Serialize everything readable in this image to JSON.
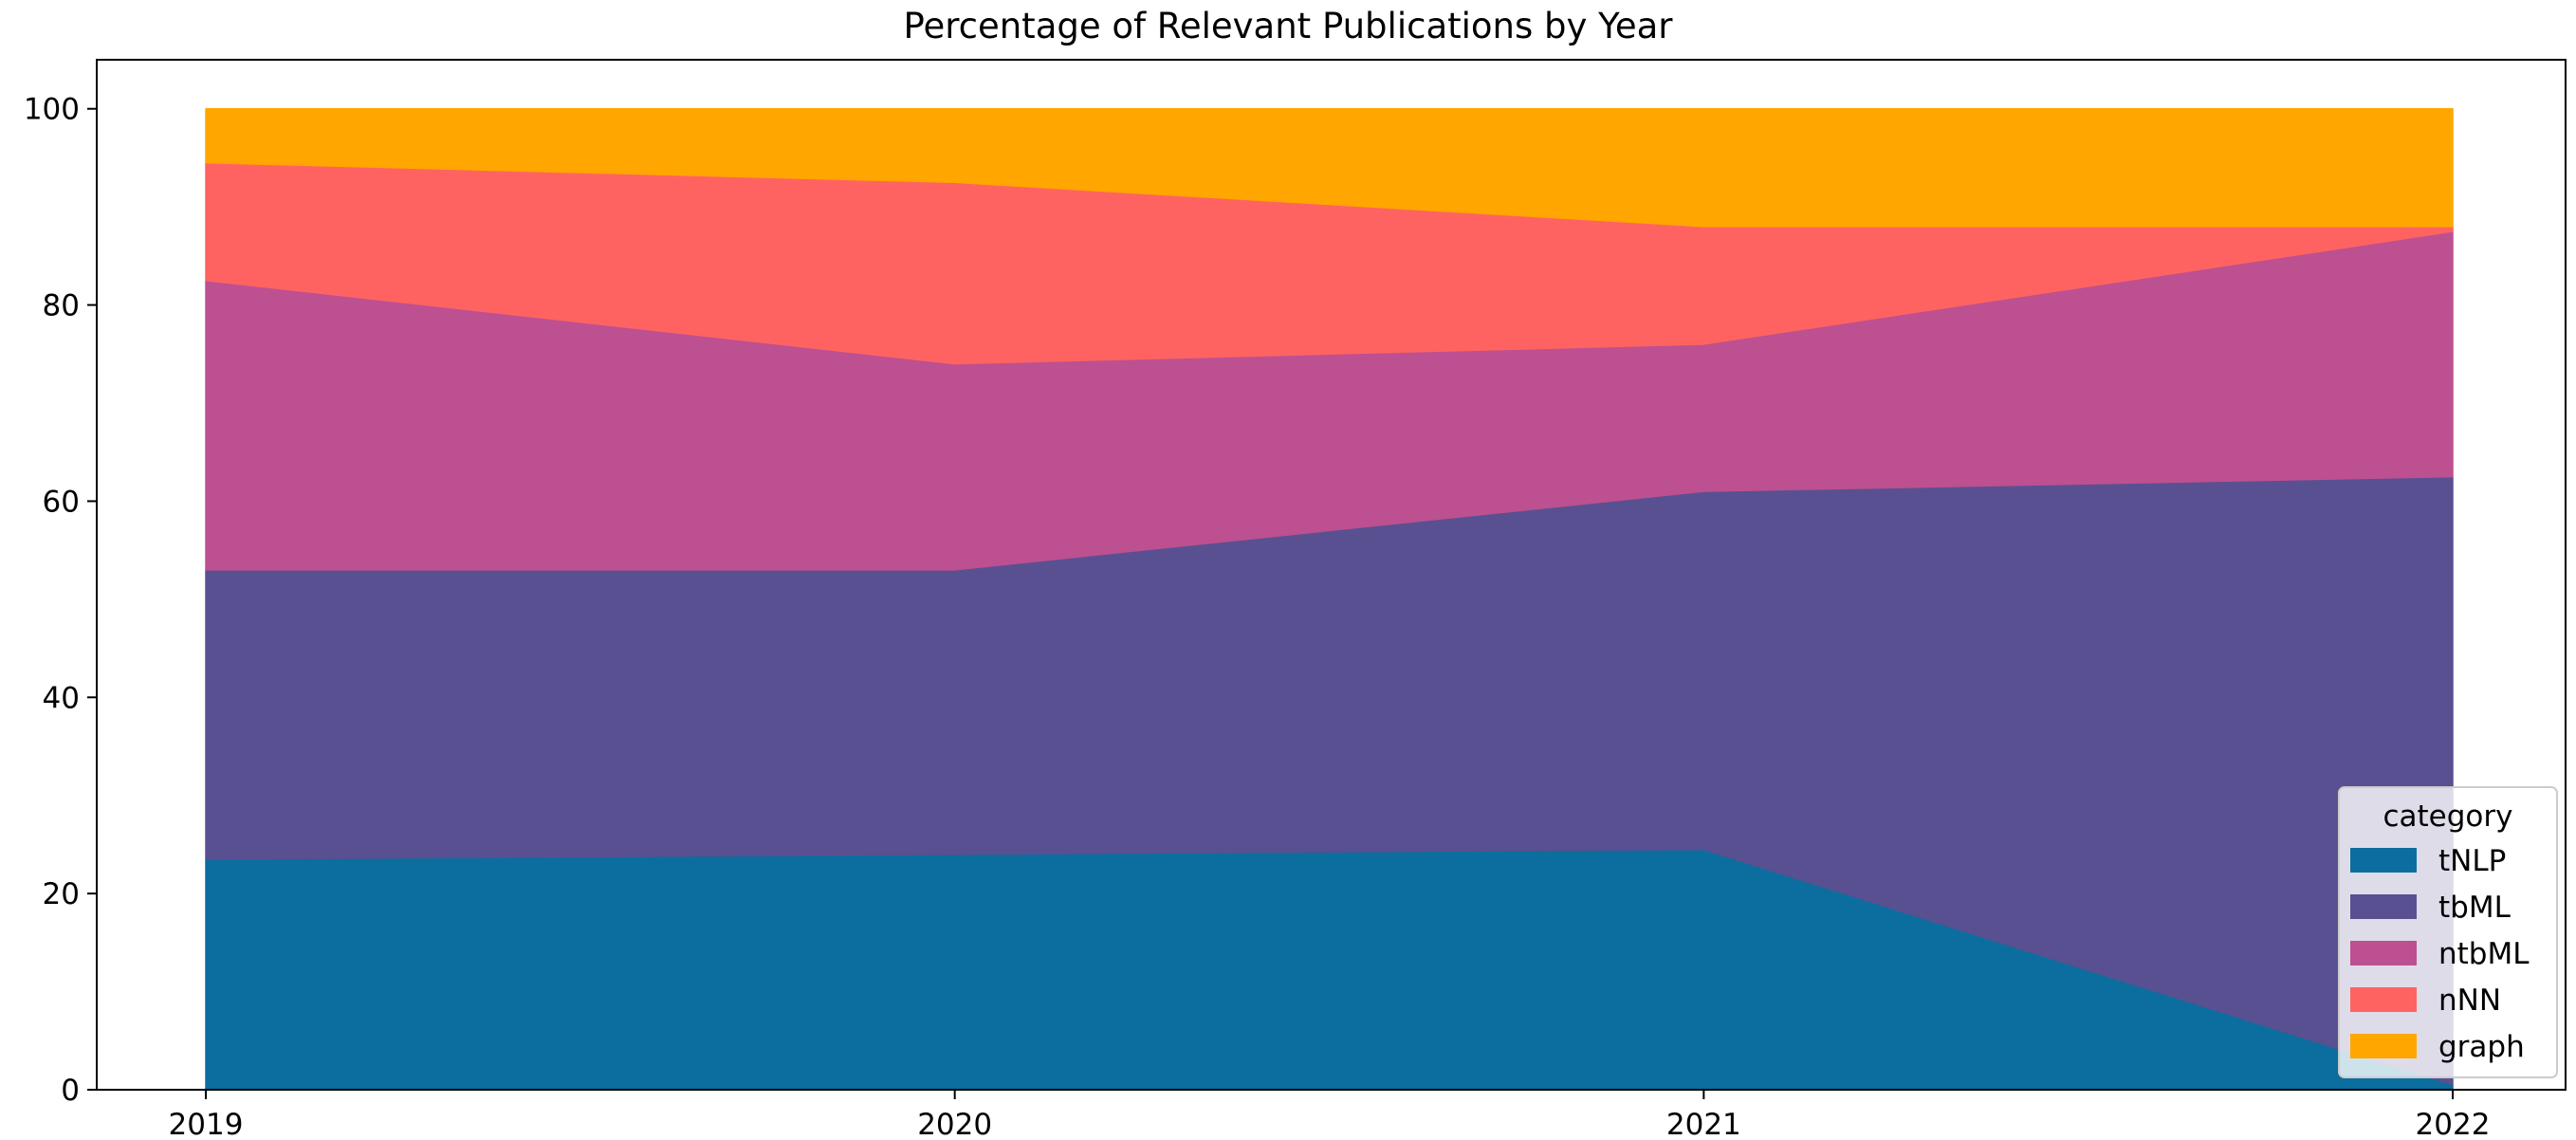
{
  "chart_data": {
    "type": "area",
    "stacked": true,
    "title": "Percentage of Relevant Publications by Year",
    "xlabel": "",
    "ylabel": "",
    "x": [
      "2019",
      "2020",
      "2021",
      "2022"
    ],
    "ylim": [
      0,
      105
    ],
    "yticks": [
      0,
      20,
      40,
      60,
      80,
      100
    ],
    "grid": false,
    "series": [
      {
        "name": "tNLP",
        "color": "#0b6e9e",
        "values": [
          23.5,
          24.0,
          24.5,
          0.5
        ]
      },
      {
        "name": "tbML",
        "color": "#595091",
        "values": [
          29.5,
          29.0,
          36.5,
          62.0
        ]
      },
      {
        "name": "ntbML",
        "color": "#bd5090",
        "values": [
          29.5,
          21.0,
          15.0,
          25.0
        ]
      },
      {
        "name": "nNN",
        "color": "#ff6361",
        "values": [
          12.0,
          18.5,
          12.0,
          0.5
        ]
      },
      {
        "name": "graph",
        "color": "#ffa600",
        "values": [
          5.5,
          7.5,
          12.0,
          12.0
        ]
      }
    ],
    "legend": {
      "title": "category",
      "placement": "lower-right"
    }
  }
}
